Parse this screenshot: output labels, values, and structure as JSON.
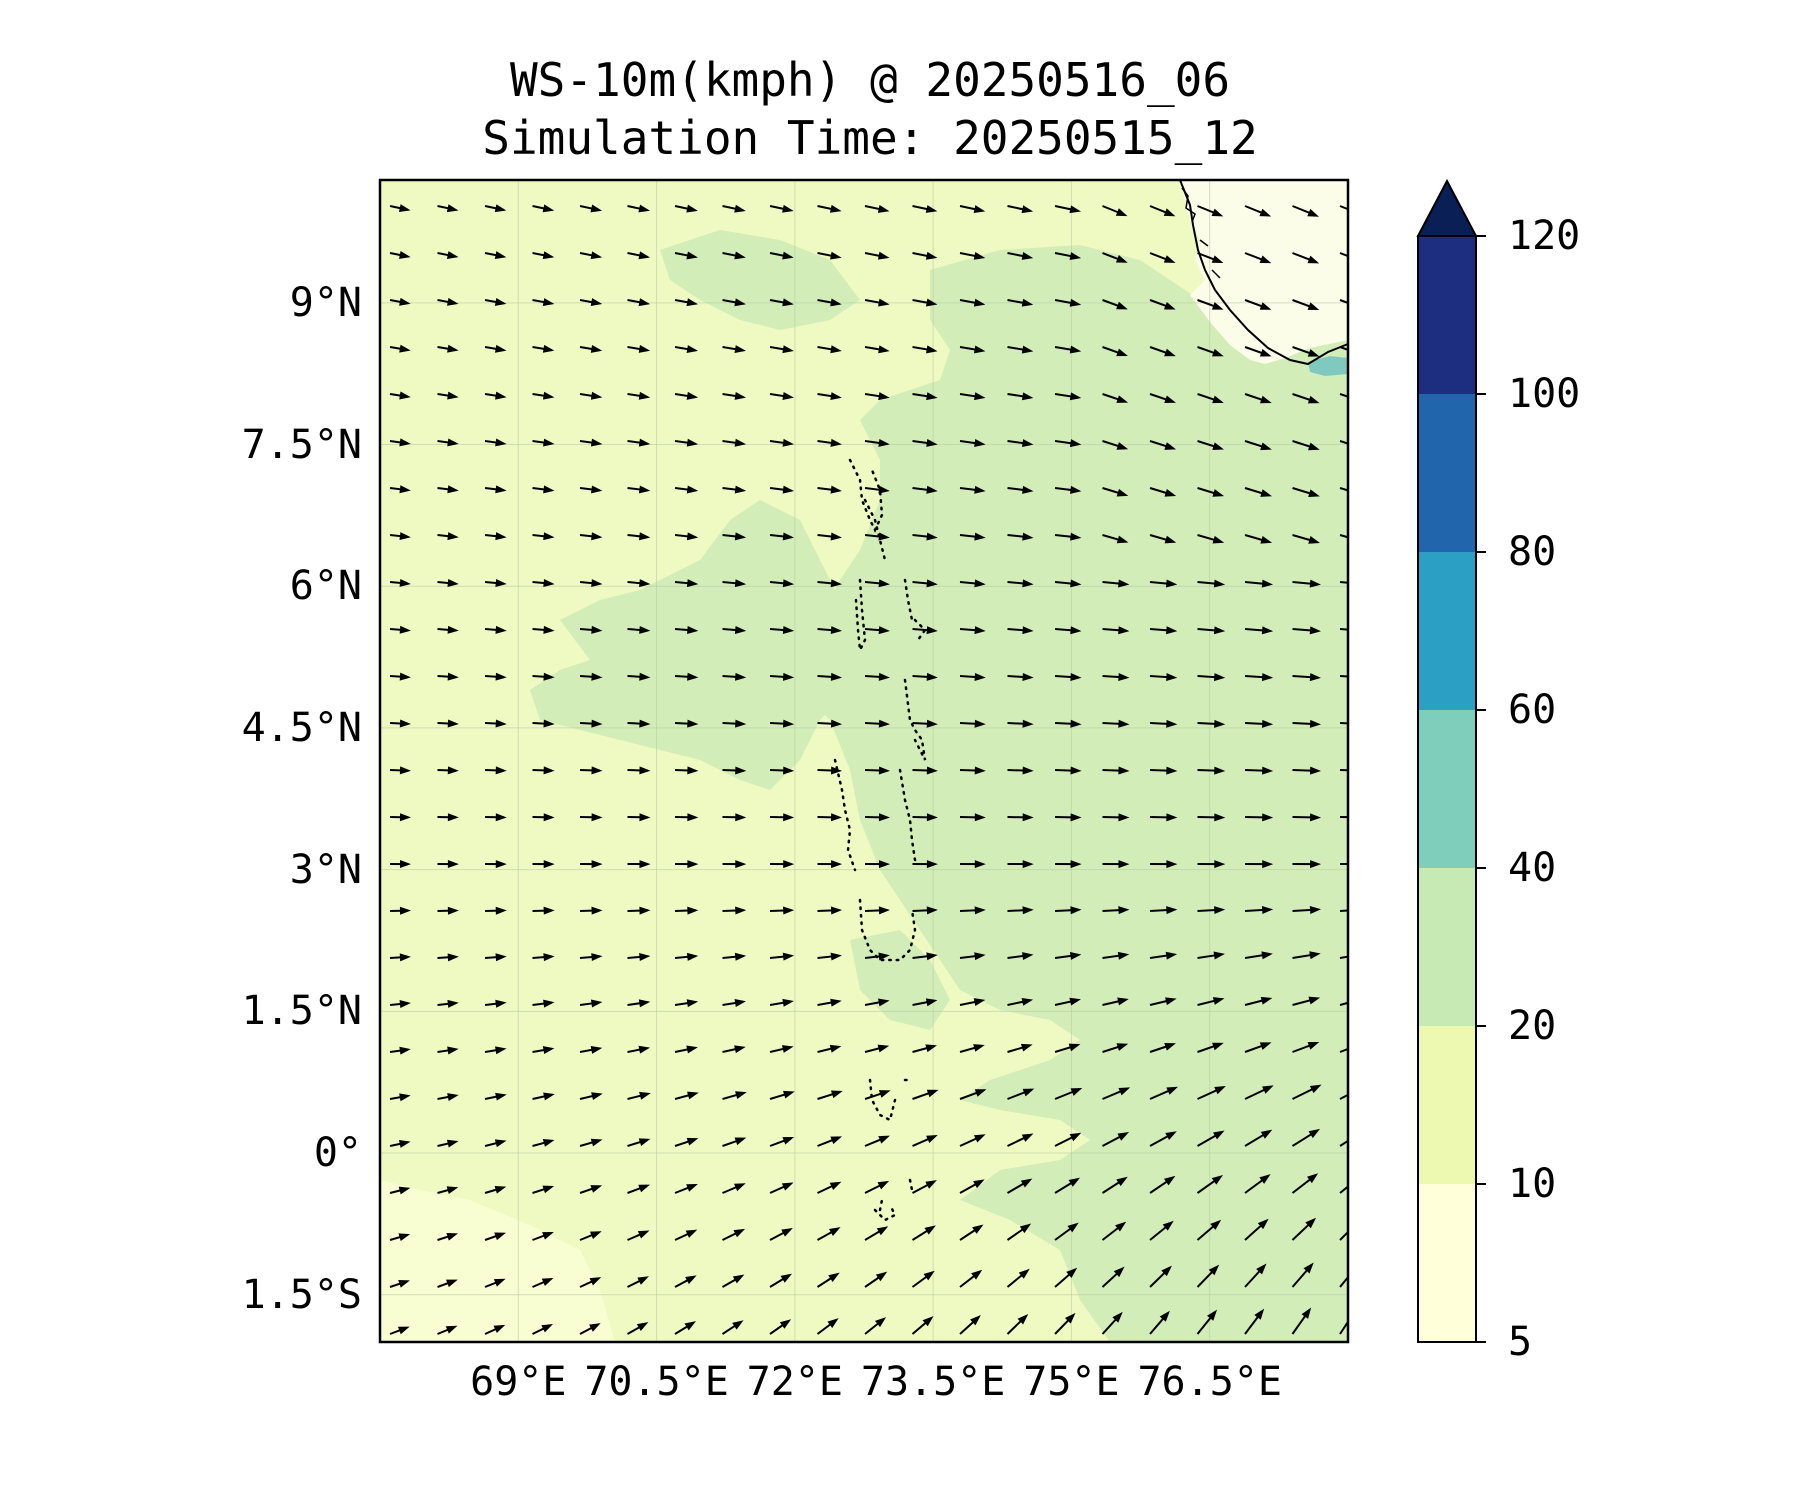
{
  "title": {
    "line1": "WS-10m(kmph) @ 20250516_06",
    "line2": "Simulation Time: 20250515_12"
  },
  "map": {
    "lon_range": [
      67.5,
      78.0
    ],
    "lat_range": [
      -2.0,
      10.3
    ],
    "lat_ticks": [
      {
        "value": 9.0,
        "label": "9°N"
      },
      {
        "value": 7.5,
        "label": "7.5°N"
      },
      {
        "value": 6.0,
        "label": "6°N"
      },
      {
        "value": 4.5,
        "label": "4.5°N"
      },
      {
        "value": 3.0,
        "label": "3°N"
      },
      {
        "value": 1.5,
        "label": "1.5°N"
      },
      {
        "value": 0.0,
        "label": "0°"
      },
      {
        "value": -1.5,
        "label": "1.5°S"
      }
    ],
    "lon_ticks": [
      {
        "value": 69.0,
        "label": "69°E"
      },
      {
        "value": 70.5,
        "label": "70.5°E"
      },
      {
        "value": 72.0,
        "label": "72°E"
      },
      {
        "value": 73.5,
        "label": "73.5°E"
      },
      {
        "value": 75.0,
        "label": "75°E"
      },
      {
        "value": 76.5,
        "label": "76.5°E"
      }
    ],
    "gridlines": true,
    "features": [
      "India southern coastline (top-right)",
      "Maldives atolls (dotted)",
      "wind vectors"
    ]
  },
  "colorbar": {
    "levels": [
      5,
      10,
      20,
      40,
      60,
      80,
      100,
      120
    ],
    "colors": [
      "#ffffd9",
      "#edf8b1",
      "#c7e9b4",
      "#7fcdbb",
      "#2c9fc5",
      "#2166ac",
      "#1d2e81",
      "#0a1f56"
    ],
    "extend": "max",
    "tick_labels": [
      "5",
      "10",
      "20",
      "40",
      "60",
      "80",
      "100",
      "120"
    ]
  },
  "colors": {
    "low": "#f7fcc8",
    "field": "#eefac2",
    "mid": "#d2edb8",
    "coast_high": "#7fc9bf",
    "land": "#ffffff",
    "frame": "#000000"
  }
}
